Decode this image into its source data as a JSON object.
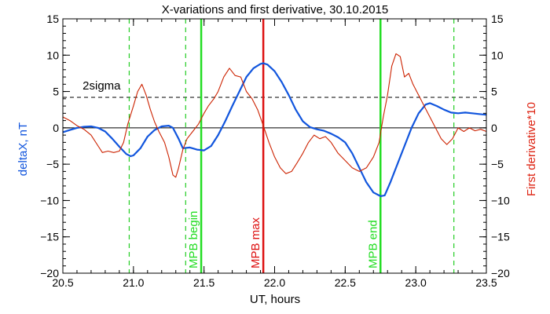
{
  "chart_data": {
    "type": "line",
    "title": "X-variations and first derivative, 30.10.2015",
    "xlabel": "UT, hours",
    "ylabel_left": "deltaX, nT",
    "ylabel_right": "First derivative*10",
    "xlim": [
      20.5,
      23.5
    ],
    "ylim": [
      -20,
      15
    ],
    "x_ticks": [
      "20.5",
      "21.0",
      "21.5",
      "22.0",
      "22.5",
      "23.0",
      "23.5"
    ],
    "y_ticks": [
      "15",
      "10",
      "5",
      "0",
      "−5",
      "−10",
      "−15",
      "−20"
    ],
    "threshold": {
      "label": "2sigma",
      "value": 4.2
    },
    "markers": [
      {
        "label": "",
        "x": 20.97,
        "style": "dashed",
        "color": "#22cc22"
      },
      {
        "label": "",
        "x": 21.37,
        "style": "dashed",
        "color": "#22cc22"
      },
      {
        "label": "MPB begin",
        "x": 21.48,
        "style": "solid",
        "color": "#22dd22"
      },
      {
        "label": "MPB max",
        "x": 21.92,
        "style": "solid",
        "color": "#dd1111"
      },
      {
        "label": "MPB end",
        "x": 22.75,
        "style": "solid",
        "color": "#22dd22"
      },
      {
        "label": "",
        "x": 23.27,
        "style": "dashed",
        "color": "#22cc22"
      }
    ],
    "series": [
      {
        "color": "#1155dd",
        "points": [
          [
            20.5,
            -0.6
          ],
          [
            20.55,
            -0.3
          ],
          [
            20.6,
            0
          ],
          [
            20.65,
            0.15
          ],
          [
            20.7,
            0.2
          ],
          [
            20.75,
            0
          ],
          [
            20.8,
            -0.5
          ],
          [
            20.85,
            -1.5
          ],
          [
            20.9,
            -2.6
          ],
          [
            20.95,
            -3.6
          ],
          [
            20.98,
            -3.9
          ],
          [
            21.0,
            -3.8
          ],
          [
            21.05,
            -2.8
          ],
          [
            21.1,
            -1.2
          ],
          [
            21.15,
            -0.3
          ],
          [
            21.2,
            0.2
          ],
          [
            21.25,
            0.3
          ],
          [
            21.28,
            0
          ],
          [
            21.32,
            -1.5
          ],
          [
            21.35,
            -2.8
          ],
          [
            21.4,
            -2.7
          ],
          [
            21.45,
            -3.0
          ],
          [
            21.5,
            -3.1
          ],
          [
            21.55,
            -2.5
          ],
          [
            21.6,
            -1.0
          ],
          [
            21.65,
            0.9
          ],
          [
            21.7,
            3.0
          ],
          [
            21.75,
            5.0
          ],
          [
            21.8,
            7.0
          ],
          [
            21.85,
            8.2
          ],
          [
            21.9,
            8.8
          ],
          [
            21.92,
            8.9
          ],
          [
            21.95,
            8.7
          ],
          [
            22.0,
            7.8
          ],
          [
            22.05,
            6.3
          ],
          [
            22.1,
            4.5
          ],
          [
            22.15,
            2.5
          ],
          [
            22.2,
            0.9
          ],
          [
            22.25,
            0.1
          ],
          [
            22.3,
            -0.2
          ],
          [
            22.35,
            -0.4
          ],
          [
            22.4,
            -0.8
          ],
          [
            22.45,
            -1.3
          ],
          [
            22.5,
            -2.0
          ],
          [
            22.55,
            -3.5
          ],
          [
            22.6,
            -5.5
          ],
          [
            22.65,
            -7.5
          ],
          [
            22.7,
            -8.9
          ],
          [
            22.75,
            -9.4
          ],
          [
            22.78,
            -9.3
          ],
          [
            22.82,
            -7.5
          ],
          [
            22.87,
            -5.0
          ],
          [
            22.92,
            -2.5
          ],
          [
            22.97,
            0
          ],
          [
            23.02,
            2.0
          ],
          [
            23.07,
            3.2
          ],
          [
            23.1,
            3.4
          ],
          [
            23.15,
            3.0
          ],
          [
            23.2,
            2.5
          ],
          [
            23.25,
            2.1
          ],
          [
            23.3,
            2.0
          ],
          [
            23.35,
            2.1
          ],
          [
            23.4,
            2.0
          ],
          [
            23.45,
            1.9
          ],
          [
            23.5,
            1.8
          ]
        ]
      },
      {
        "color": "#cc2200",
        "points": [
          [
            20.5,
            1.5
          ],
          [
            20.55,
            1.0
          ],
          [
            20.6,
            0.3
          ],
          [
            20.65,
            -0.2
          ],
          [
            20.7,
            -1.0
          ],
          [
            20.75,
            -2.5
          ],
          [
            20.78,
            -3.4
          ],
          [
            20.82,
            -3.2
          ],
          [
            20.86,
            -3.4
          ],
          [
            20.9,
            -3.2
          ],
          [
            20.93,
            -2.0
          ],
          [
            20.96,
            0.5
          ],
          [
            21.0,
            3.0
          ],
          [
            21.03,
            5.0
          ],
          [
            21.06,
            6.0
          ],
          [
            21.09,
            4.5
          ],
          [
            21.12,
            2.5
          ],
          [
            21.15,
            0.8
          ],
          [
            21.18,
            -0.5
          ],
          [
            21.22,
            -2.0
          ],
          [
            21.25,
            -4.0
          ],
          [
            21.28,
            -6.5
          ],
          [
            21.3,
            -6.8
          ],
          [
            21.32,
            -5.5
          ],
          [
            21.35,
            -3.0
          ],
          [
            21.38,
            -1.5
          ],
          [
            21.42,
            -0.5
          ],
          [
            21.46,
            0.5
          ],
          [
            21.5,
            2.0
          ],
          [
            21.53,
            3.0
          ],
          [
            21.57,
            4.0
          ],
          [
            21.6,
            5.0
          ],
          [
            21.64,
            7.0
          ],
          [
            21.68,
            8.2
          ],
          [
            21.72,
            7.2
          ],
          [
            21.76,
            7.0
          ],
          [
            21.8,
            5.0
          ],
          [
            21.84,
            4.0
          ],
          [
            21.88,
            2.5
          ],
          [
            21.92,
            0.3
          ],
          [
            21.96,
            -2.0
          ],
          [
            22.0,
            -4.0
          ],
          [
            22.04,
            -5.5
          ],
          [
            22.08,
            -6.3
          ],
          [
            22.12,
            -6.0
          ],
          [
            22.16,
            -4.8
          ],
          [
            22.2,
            -3.5
          ],
          [
            22.24,
            -2.0
          ],
          [
            22.28,
            -1.0
          ],
          [
            22.32,
            -1.5
          ],
          [
            22.36,
            -1.2
          ],
          [
            22.4,
            -2.0
          ],
          [
            22.45,
            -3.5
          ],
          [
            22.5,
            -4.5
          ],
          [
            22.55,
            -5.5
          ],
          [
            22.6,
            -6.0
          ],
          [
            22.65,
            -5.5
          ],
          [
            22.7,
            -4.0
          ],
          [
            22.74,
            -2.0
          ],
          [
            22.77,
            1.5
          ],
          [
            22.8,
            4.5
          ],
          [
            22.83,
            8.5
          ],
          [
            22.86,
            10.2
          ],
          [
            22.89,
            9.8
          ],
          [
            22.92,
            7.0
          ],
          [
            22.95,
            7.5
          ],
          [
            22.98,
            6.0
          ],
          [
            23.02,
            4.5
          ],
          [
            23.06,
            3.0
          ],
          [
            23.1,
            1.5
          ],
          [
            23.14,
            0
          ],
          [
            23.18,
            -1.5
          ],
          [
            23.22,
            -2.3
          ],
          [
            23.26,
            -1.5
          ],
          [
            23.3,
            0
          ],
          [
            23.34,
            -0.5
          ],
          [
            23.38,
            0
          ],
          [
            23.42,
            -0.4
          ],
          [
            23.46,
            -0.2
          ],
          [
            23.5,
            -0.5
          ]
        ]
      }
    ]
  },
  "colors": {
    "left_axis_label": "#1155dd",
    "right_axis_label": "#dd2211",
    "axis": "#000000"
  }
}
